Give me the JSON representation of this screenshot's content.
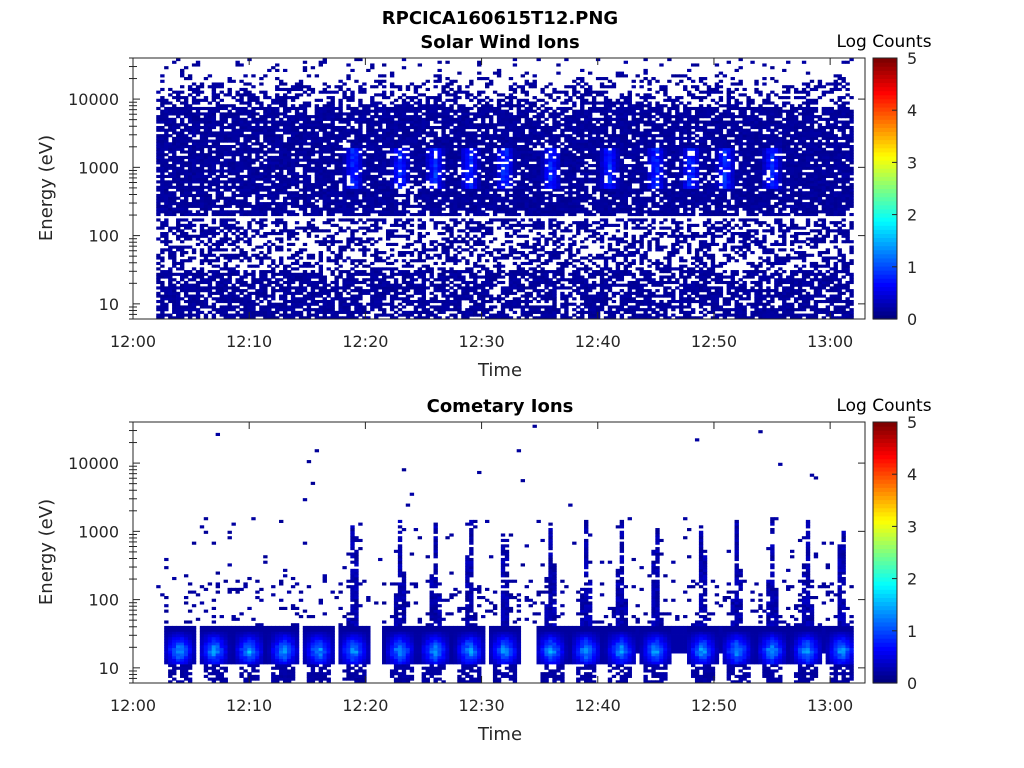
{
  "figure": {
    "title": "RPCICA160615T12.PNG"
  },
  "chart_data": [
    {
      "type": "heatmap",
      "title": "Solar Wind Ions",
      "xlabel": "Time",
      "ylabel": "Energy (eV)",
      "x_range": [
        "12:00",
        "13:03"
      ],
      "x_ticks": [
        "12:00",
        "12:10",
        "12:20",
        "12:30",
        "12:40",
        "12:50",
        "13:00"
      ],
      "y_scale": "log",
      "y_range": [
        6,
        40000
      ],
      "y_ticks": [
        "10",
        "100",
        "1000",
        "10000"
      ],
      "colorbar": {
        "label": "Log Counts",
        "range": [
          0,
          5
        ],
        "ticks": [
          "0",
          "1",
          "2",
          "3",
          "4",
          "5"
        ],
        "colormap": "jet"
      },
      "data_start": "12:02",
      "data_end": "13:02",
      "dense_band_eV": [
        200,
        8000
      ],
      "peak_band_eV": [
        500,
        2000
      ],
      "peak_times": [
        "12:19",
        "12:23",
        "12:26",
        "12:29",
        "12:32",
        "12:36",
        "12:41",
        "12:45",
        "12:48",
        "12:51",
        "12:55"
      ],
      "peak_level": 0.9,
      "gap_energy_eV": 190
    },
    {
      "type": "heatmap",
      "title": "Cometary Ions",
      "xlabel": "Time",
      "ylabel": "Energy (eV)",
      "x_range": [
        "12:00",
        "13:03"
      ],
      "x_ticks": [
        "12:00",
        "12:10",
        "12:20",
        "12:30",
        "12:40",
        "12:50",
        "13:00"
      ],
      "y_scale": "log",
      "y_range": [
        6,
        40000
      ],
      "y_ticks": [
        "10",
        "100",
        "1000",
        "10000"
      ],
      "colorbar": {
        "label": "Log Counts",
        "range": [
          0,
          5
        ],
        "ticks": [
          "0",
          "1",
          "2",
          "3",
          "4",
          "5"
        ],
        "colormap": "jet"
      },
      "data_start": "12:02",
      "data_end": "13:02",
      "burst_times": [
        "12:04",
        "12:07",
        "12:10",
        "12:13",
        "12:16",
        "12:19",
        "12:23",
        "12:26",
        "12:29",
        "12:32",
        "12:36",
        "12:39",
        "12:42",
        "12:45",
        "12:49",
        "12:52",
        "12:55",
        "12:58",
        "13:01"
      ],
      "burst_peak_eV": 18,
      "burst_peak_level": 1.6,
      "spike_top_eV": 1500
    }
  ]
}
